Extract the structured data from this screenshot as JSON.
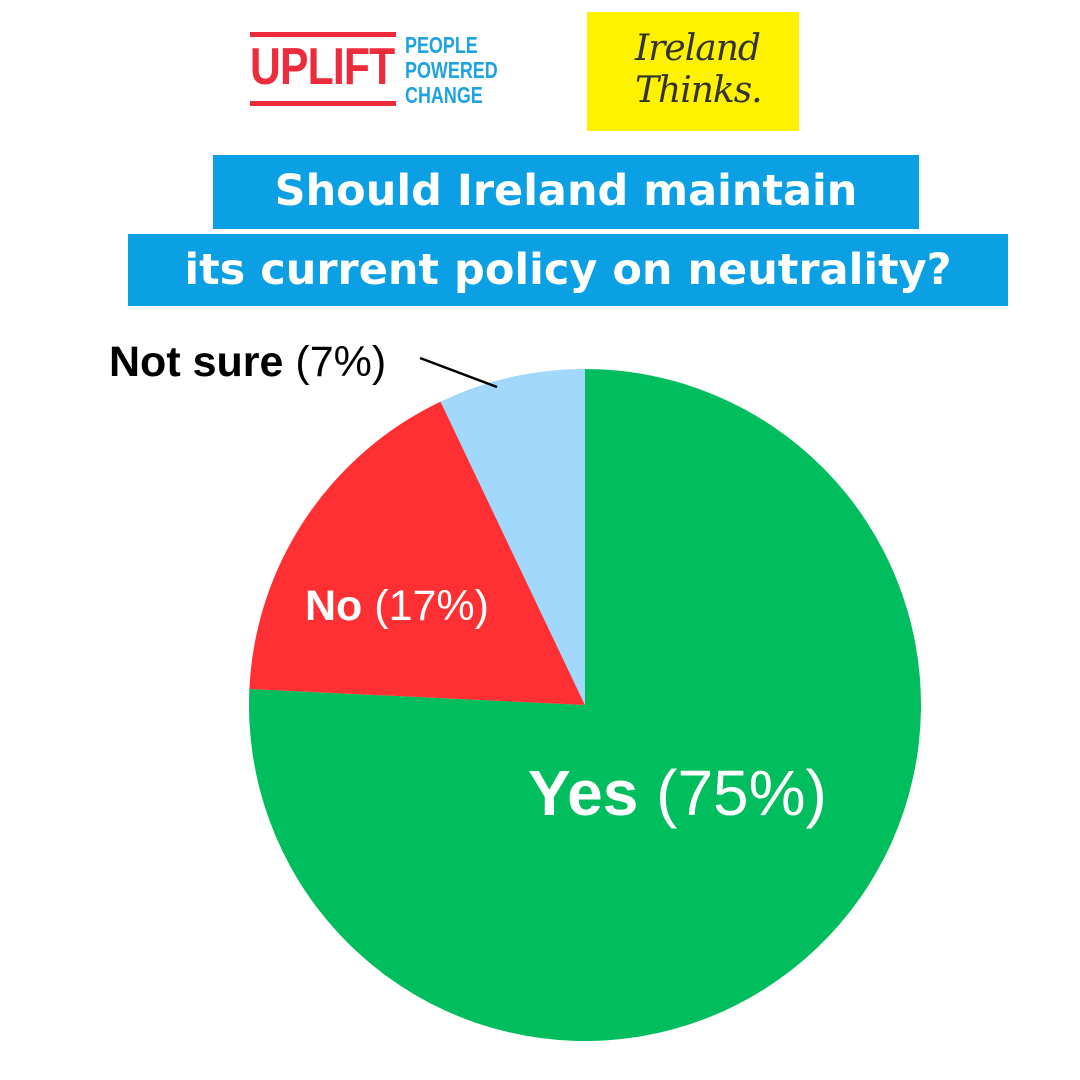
{
  "logos": {
    "uplift": {
      "word": "UPLIFT",
      "tagline": [
        "PEOPLE",
        "POWERED",
        "CHANGE"
      ],
      "colors": {
        "red": "#ec2b3b",
        "blue": "#1fa3e0"
      }
    },
    "ireland_thinks": {
      "lines": [
        "Ireland",
        "Thinks."
      ],
      "background": "#fff200"
    }
  },
  "title": {
    "line1": "Should Ireland maintain",
    "line2": "its current policy on neutrality?",
    "background": "#0ba0e3"
  },
  "chart_data": {
    "type": "pie",
    "title": "Should Ireland maintain its current policy on neutrality?",
    "slices": [
      {
        "name": "Yes",
        "value": 75,
        "pct_text": "(75%)",
        "color": "#00bd5e",
        "text_color": "#ffffff"
      },
      {
        "name": "No",
        "value": 17,
        "pct_text": "(17%)",
        "color": "#ff3034",
        "text_color": "#ffffff"
      },
      {
        "name": "Not sure",
        "value": 7,
        "pct_text": "(7%)",
        "color": "#a2d8fb",
        "text_color": "#000000"
      }
    ],
    "start": "12 o'clock",
    "direction": "clockwise",
    "legend": "none"
  }
}
